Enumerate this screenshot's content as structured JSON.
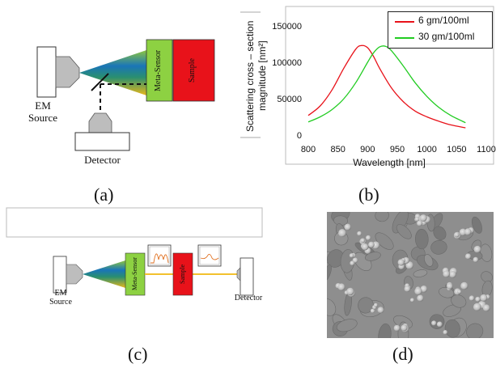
{
  "panel_a": {
    "source_label": "EM\nSource",
    "sensor_label": "Meta-Sensor",
    "sample_label": "Sample",
    "detector_label": "Detector",
    "caption": "(a)",
    "colors": {
      "sensor": "#8dd142",
      "sample": "#e8121a",
      "gray": "#bfbfbf"
    }
  },
  "panel_b": {
    "caption": "(b)",
    "chart_data": {
      "type": "line",
      "xlabel": "Wavelength [nm]",
      "ylabel": "Scattering cross – section\nmagnitude [nm²]",
      "xlim": [
        800,
        1100
      ],
      "ylim": [
        0,
        150000
      ],
      "xticks": [
        800,
        850,
        900,
        950,
        1000,
        1050,
        1100
      ],
      "yticks": [
        0,
        50000,
        100000,
        150000
      ],
      "legend_position": "top-right",
      "series": [
        {
          "name": "6 gm/100ml",
          "color": "#e8121a",
          "x": [
            800,
            820,
            840,
            860,
            880,
            890,
            900,
            910,
            920,
            940,
            960,
            980,
            1000,
            1020,
            1040,
            1065
          ],
          "values": [
            27000,
            40000,
            62000,
            92000,
            118000,
            123000,
            120000,
            108000,
            92000,
            65000,
            46000,
            33000,
            25000,
            19000,
            14000,
            10000
          ]
        },
        {
          "name": "30 gm/100ml",
          "color": "#22cc22",
          "x": [
            800,
            820,
            840,
            860,
            880,
            900,
            910,
            920,
            930,
            940,
            960,
            980,
            1000,
            1020,
            1040,
            1065
          ],
          "values": [
            18000,
            25000,
            35000,
            50000,
            72000,
            100000,
            113000,
            121000,
            122000,
            116000,
            95000,
            72000,
            53000,
            38000,
            27000,
            17000
          ]
        }
      ]
    }
  },
  "panel_c": {
    "source_label": "EM\nSource",
    "sensor_label": "Meta-Sensor",
    "sample_label": "Sample",
    "detector_label": "Detector",
    "caption": "(c)"
  },
  "panel_d": {
    "caption": "(d)"
  }
}
